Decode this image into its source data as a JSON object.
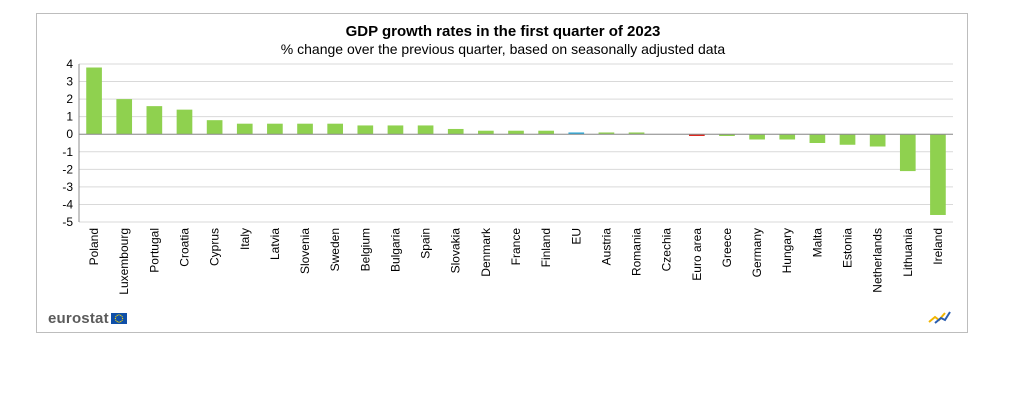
{
  "chart_data": {
    "type": "bar",
    "title": "GDP growth rates in the first quarter of  2023",
    "subtitle": "% change over the previous quarter, based on seasonally adjusted data",
    "xlabel": "",
    "ylabel": "",
    "ylim": [
      -5,
      4
    ],
    "yticks": [
      4,
      3,
      2,
      1,
      0,
      -1,
      -2,
      -3,
      -4,
      -5
    ],
    "grid": true,
    "categories": [
      "Poland",
      "Luxembourg",
      "Portugal",
      "Croatia",
      "Cyprus",
      "Italy",
      "Latvia",
      "Slovenia",
      "Sweden",
      "Belgium",
      "Bulgaria",
      "Spain",
      "Slovakia",
      "Denmark",
      "France",
      "Finland",
      "EU",
      "Austria",
      "Romania",
      "Czechia",
      "Euro area",
      "Greece",
      "Germany",
      "Hungary",
      "Malta",
      "Estonia",
      "Netherlands",
      "Lithuania",
      "Ireland"
    ],
    "values": [
      3.8,
      2.0,
      1.6,
      1.4,
      0.8,
      0.6,
      0.6,
      0.6,
      0.6,
      0.5,
      0.5,
      0.5,
      0.3,
      0.2,
      0.2,
      0.2,
      0.1,
      0.1,
      0.1,
      0.0,
      -0.1,
      -0.1,
      -0.3,
      -0.3,
      -0.5,
      -0.6,
      -0.7,
      -2.1,
      -4.6
    ],
    "colors": {
      "default": "#8fd14f",
      "EU": "#29a6d8",
      "Euro area": "#e0251b"
    }
  },
  "branding": {
    "logo_text": "eurostat",
    "eu_flag_color": "#0f4fa8",
    "eu_star_color": "#ffdd00"
  }
}
